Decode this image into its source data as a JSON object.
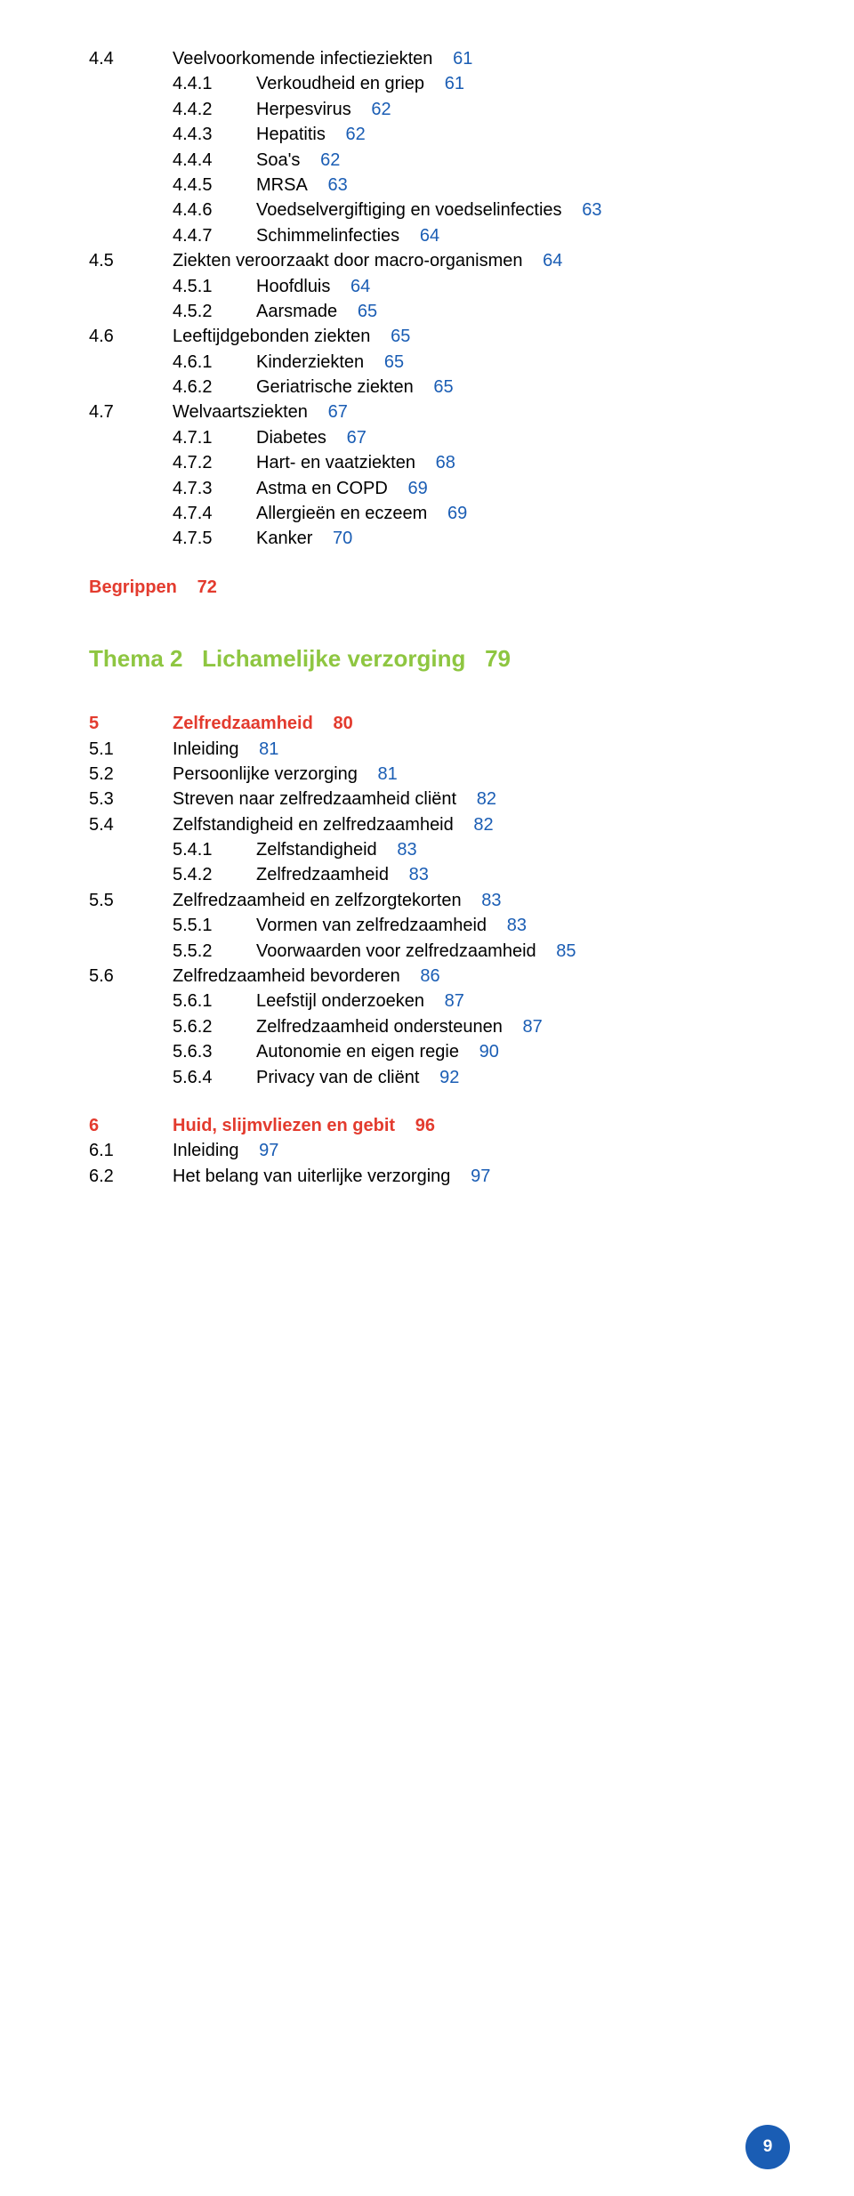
{
  "block1": [
    {
      "num": "4.4",
      "label": "Veelvoorkomende infectieziekten",
      "page": "61",
      "indent": 0
    },
    {
      "num": "4.4.1",
      "label": "Verkoudheid en griep",
      "page": "61",
      "indent": 1
    },
    {
      "num": "4.4.2",
      "label": "Herpesvirus",
      "page": "62",
      "indent": 1
    },
    {
      "num": "4.4.3",
      "label": "Hepatitis",
      "page": "62",
      "indent": 1
    },
    {
      "num": "4.4.4",
      "label": "Soa's",
      "page": "62",
      "indent": 1
    },
    {
      "num": "4.4.5",
      "label": "MRSA",
      "page": "63",
      "indent": 1
    },
    {
      "num": "4.4.6",
      "label": "Voedselvergiftiging en voedselinfecties",
      "page": "63",
      "indent": 1
    },
    {
      "num": "4.4.7",
      "label": "Schimmelinfecties",
      "page": "64",
      "indent": 1
    },
    {
      "num": "4.5",
      "label": "Ziekten veroorzaakt door macro-organismen",
      "page": "64",
      "indent": 0
    },
    {
      "num": "4.5.1",
      "label": "Hoofdluis",
      "page": "64",
      "indent": 1
    },
    {
      "num": "4.5.2",
      "label": "Aarsmade",
      "page": "65",
      "indent": 1
    },
    {
      "num": "4.6",
      "label": "Leeftijdgebonden ziekten",
      "page": "65",
      "indent": 0
    },
    {
      "num": "4.6.1",
      "label": "Kinderziekten",
      "page": "65",
      "indent": 1
    },
    {
      "num": "4.6.2",
      "label": "Geriatrische ziekten",
      "page": "65",
      "indent": 1
    },
    {
      "num": "4.7",
      "label": "Welvaartsziekten",
      "page": "67",
      "indent": 0
    },
    {
      "num": "4.7.1",
      "label": "Diabetes",
      "page": "67",
      "indent": 1
    },
    {
      "num": "4.7.2",
      "label": "Hart- en vaatziekten",
      "page": "68",
      "indent": 1
    },
    {
      "num": "4.7.3",
      "label": "Astma en COPD",
      "page": "69",
      "indent": 1
    },
    {
      "num": "4.7.4",
      "label": "Allergieën en eczeem",
      "page": "69",
      "indent": 1
    },
    {
      "num": "4.7.5",
      "label": "Kanker",
      "page": "70",
      "indent": 1
    }
  ],
  "begrippen": {
    "label": "Begrippen",
    "page": "72"
  },
  "thema": {
    "prefix": "Thema 2",
    "title": "Lichamelijke verzorging",
    "page": "79"
  },
  "block5": {
    "num": "5",
    "label": "Zelfredzaamheid",
    "page": "80"
  },
  "block5items": [
    {
      "num": "5.1",
      "label": "Inleiding",
      "page": "81",
      "indent": 0
    },
    {
      "num": "5.2",
      "label": "Persoonlijke verzorging",
      "page": "81",
      "indent": 0
    },
    {
      "num": "5.3",
      "label": "Streven naar zelfredzaamheid cliënt",
      "page": "82",
      "indent": 0
    },
    {
      "num": "5.4",
      "label": "Zelfstandigheid en zelfredzaamheid",
      "page": "82",
      "indent": 0
    },
    {
      "num": "5.4.1",
      "label": "Zelfstandigheid",
      "page": "83",
      "indent": 1
    },
    {
      "num": "5.4.2",
      "label": "Zelfredzaamheid",
      "page": "83",
      "indent": 1
    },
    {
      "num": "5.5",
      "label": "Zelfredzaamheid en zelfzorgtekorten",
      "page": "83",
      "indent": 0
    },
    {
      "num": "5.5.1",
      "label": "Vormen van zelfredzaamheid",
      "page": "83",
      "indent": 1
    },
    {
      "num": "5.5.2",
      "label": "Voorwaarden voor zelfredzaamheid",
      "page": "85",
      "indent": 1
    },
    {
      "num": "5.6",
      "label": "Zelfredzaamheid bevorderen",
      "page": "86",
      "indent": 0
    },
    {
      "num": "5.6.1",
      "label": "Leefstijl onderzoeken",
      "page": "87",
      "indent": 1
    },
    {
      "num": "5.6.2",
      "label": "Zelfredzaamheid ondersteunen",
      "page": "87",
      "indent": 1
    },
    {
      "num": "5.6.3",
      "label": "Autonomie en eigen regie",
      "page": "90",
      "indent": 1
    },
    {
      "num": "5.6.4",
      "label": "Privacy van de cliënt",
      "page": "92",
      "indent": 1
    }
  ],
  "block6": {
    "num": "6",
    "label": "Huid, slijmvliezen en gebit",
    "page": "96"
  },
  "block6items": [
    {
      "num": "6.1",
      "label": "Inleiding",
      "page": "97",
      "indent": 0
    },
    {
      "num": "6.2",
      "label": "Het belang van uiterlijke verzorging",
      "page": "97",
      "indent": 0
    }
  ],
  "footer_page": "9",
  "colors": {
    "red": "#e33b2e",
    "blue": "#1a5db4",
    "green": "#8ec641",
    "text": "#000000",
    "bg": "#ffffff"
  },
  "page_number_label_sep": "   "
}
